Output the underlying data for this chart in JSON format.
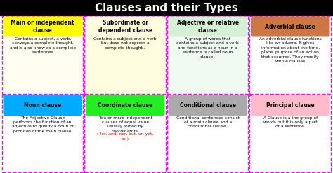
{
  "title": "Clauses and their Types",
  "title_bg": "#000000",
  "title_color": "#ffffff",
  "title_fontsize": 11,
  "outer_border_color": "#ff00ff",
  "fig_bg": "#ffffff",
  "cells": [
    {
      "row": 0,
      "col": 0,
      "header": "Main or independent\nclause",
      "header_bg": "#ffff00",
      "header_color": "#000000",
      "cell_bg": "#fffef0",
      "body": "Contains a subject, a verb,\nconveys a complete thought,\nand is also know as a complete\nsentences",
      "body_color": "#000000"
    },
    {
      "row": 0,
      "col": 1,
      "header": "Subordinate or\ndependent clause",
      "header_bg": "#fffde0",
      "header_color": "#000000",
      "cell_bg": "#fffde0",
      "body": "Contains a subject and a verb\nbut dose not express a\ncomplete thought..",
      "body_color": "#000000"
    },
    {
      "row": 0,
      "col": 2,
      "header": "Adjective or relative\nclause",
      "header_bg": "#d5f0d5",
      "header_color": "#000000",
      "cell_bg": "#f0faf0",
      "body": "A group of words that\ncontains a subject and a verb\nand functions as a noun in a\nsentence is called noun\nclause.",
      "body_color": "#000000"
    },
    {
      "row": 0,
      "col": 3,
      "header": "Adverbial clause",
      "header_bg": "#cc7744",
      "header_color": "#000000",
      "cell_bg": "#ffffff",
      "body": "An adverbial clause functions\nlike an adverb. It gives\ninformation about the time,\nplace, purpose of an action\nthat occurred. They modify\nwhole clauses",
      "body_color": "#000000"
    },
    {
      "row": 1,
      "col": 0,
      "header": "Noun clause",
      "header_bg": "#00aaff",
      "header_color": "#000000",
      "cell_bg": "#ffffff",
      "body": "The Adjective Clause\nperforms the function of an\nadjective to qualify a noun or\npronoun of the main clause.",
      "body_color": "#000000"
    },
    {
      "row": 1,
      "col": 1,
      "header": "Coordinate clause",
      "header_bg": "#22ee22",
      "header_color": "#000000",
      "cell_bg": "#ffffff",
      "body": "Two or more independent\nclauses of equal value\nusually joined by\ncoordinators.",
      "body_color": "#000000",
      "extra": "( for, and, nor, but, or, yet,\nso,)",
      "extra_color": "#ff0000"
    },
    {
      "row": 1,
      "col": 2,
      "header": "Conditional clause",
      "header_bg": "#aaaaaa",
      "header_color": "#000000",
      "cell_bg": "#ffffff",
      "body": "Conditional sentences consist\nof a main clause and a\nconditional clause.",
      "body_color": "#000000"
    },
    {
      "row": 1,
      "col": 3,
      "header": "Principal clause",
      "header_bg": "#ffbbcc",
      "header_color": "#000000",
      "cell_bg": "#ffffff",
      "body": "A Clause is a the group of\nwords but it is only a part\nof a sentence.",
      "body_color": "#000000"
    }
  ]
}
